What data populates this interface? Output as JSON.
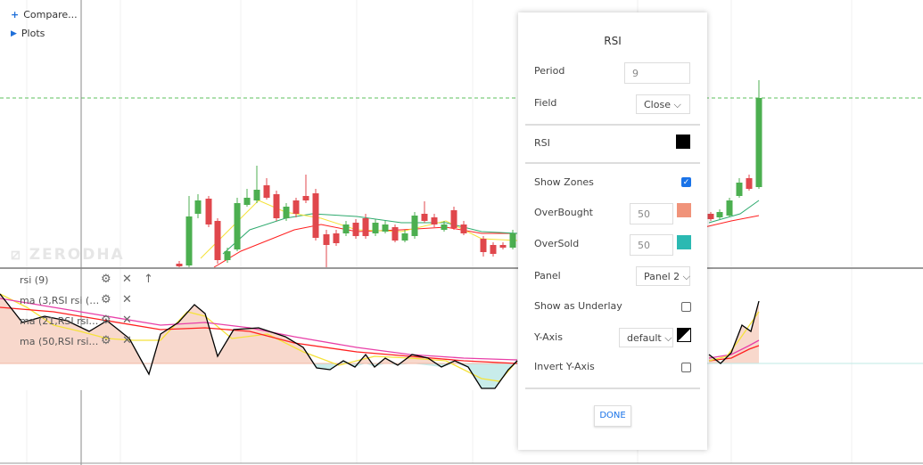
{
  "menu": {
    "compare": "Compare...",
    "plots": "Plots"
  },
  "watermark": "ZERODHA",
  "studies": [
    {
      "label": "rsi (9)",
      "icons": [
        "gear-icon",
        "close-icon",
        "arrow-up-icon"
      ]
    },
    {
      "label": "ma (3,RSI rsi (9),e...",
      "icons": [
        "gear-icon",
        "close-icon"
      ]
    },
    {
      "label": "ma (21,RSI rsi (9),...",
      "icons": [
        "gear-icon",
        "close-icon"
      ]
    },
    {
      "label": "ma (50,RSI rsi (9),...",
      "icons": [
        "gear-icon",
        "close-icon"
      ]
    }
  ],
  "dialog": {
    "title": "RSI",
    "period_label": "Period",
    "period_value": "9",
    "field_label": "Field",
    "field_value": "Close",
    "rsi_label": "RSI",
    "rsi_color": "#000000",
    "show_zones_label": "Show Zones",
    "show_zones": true,
    "overbought_label": "OverBought",
    "overbought_value": "50",
    "overbought_color": "#f0937a",
    "oversold_label": "OverSold",
    "oversold_value": "50",
    "oversold_color": "#2bb9b2",
    "panel_label": "Panel",
    "panel_value": "Panel 2",
    "underlay_label": "Show as Underlay",
    "underlay": false,
    "yaxis_label": "Y-Axis",
    "yaxis_value": "default",
    "invert_label": "Invert Y-Axis",
    "invert": false,
    "done": "DONE"
  },
  "colors": {
    "up": "#4caf50",
    "down": "#e0474c",
    "rsi": "#000000",
    "ma3": "#f5e23a",
    "ma21": "#ff2020",
    "ma50": "#e83fa8"
  }
}
